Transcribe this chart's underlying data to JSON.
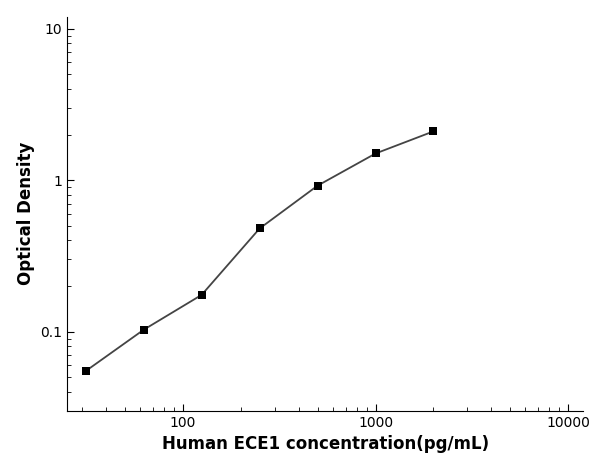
{
  "x_data": [
    31.25,
    62.5,
    125,
    250,
    500,
    1000,
    2000
  ],
  "y_data": [
    0.055,
    0.103,
    0.175,
    0.48,
    0.92,
    1.5,
    2.1
  ],
  "xlabel": "Human ECE1 concentration(pg/mL)",
  "ylabel": "Optical Density",
  "xlim_log": [
    25,
    12000
  ],
  "ylim_log": [
    0.03,
    12
  ],
  "x_ticks": [
    100,
    1000,
    10000
  ],
  "y_ticks": [
    0.1,
    1,
    10
  ],
  "marker": "s",
  "marker_color": "black",
  "marker_size": 6,
  "line_color": "#444444",
  "line_width": 1.3,
  "background_color": "#ffffff",
  "xlabel_fontsize": 12,
  "ylabel_fontsize": 12
}
